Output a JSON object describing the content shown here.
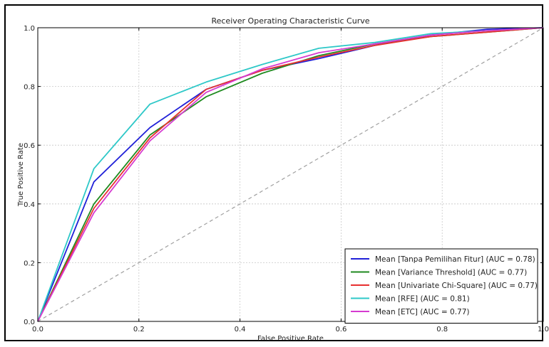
{
  "chart_data": {
    "type": "line",
    "title": "Receiver Operating Characteristic Curve",
    "xlabel": "False Positive Rate",
    "ylabel": "True Positive Rate",
    "xlim": [
      0,
      1
    ],
    "ylim": [
      0,
      1
    ],
    "xticks": [
      "0.0",
      "0.2",
      "0.4",
      "0.6",
      "0.8",
      "1.0"
    ],
    "yticks": [
      "0.0",
      "0.2",
      "0.4",
      "0.6",
      "0.8",
      "1.0"
    ],
    "grid": true,
    "legend_position": "lower-right",
    "series": [
      {
        "name": "Mean [Tanpa Pemilihan Fitur] (AUC = 0.78)",
        "color": "#2020d8",
        "x": [
          0,
          0.111,
          0.222,
          0.333,
          0.444,
          0.556,
          0.667,
          0.778,
          0.889,
          1.0
        ],
        "y": [
          0,
          0.475,
          0.66,
          0.79,
          0.855,
          0.895,
          0.94,
          0.975,
          0.995,
          1.0
        ]
      },
      {
        "name": "Mean [Variance Threshold] (AUC = 0.77)",
        "color": "#1f8a1f",
        "x": [
          0,
          0.111,
          0.222,
          0.333,
          0.444,
          0.556,
          0.667,
          0.778,
          0.889,
          1.0
        ],
        "y": [
          0,
          0.4,
          0.635,
          0.765,
          0.845,
          0.905,
          0.945,
          0.97,
          0.985,
          1.0
        ]
      },
      {
        "name": "Mean [Univariate Chi-Square] (AUC = 0.77)",
        "color": "#e83030",
        "x": [
          0,
          0.111,
          0.222,
          0.333,
          0.444,
          0.556,
          0.667,
          0.778,
          0.889,
          1.0
        ],
        "y": [
          0,
          0.385,
          0.625,
          0.79,
          0.855,
          0.9,
          0.94,
          0.97,
          0.985,
          1.0
        ]
      },
      {
        "name": "Mean [RFE] (AUC = 0.81)",
        "color": "#2ec8c8",
        "x": [
          0,
          0.111,
          0.222,
          0.333,
          0.444,
          0.556,
          0.667,
          0.778,
          0.889,
          1.0
        ],
        "y": [
          0,
          0.52,
          0.74,
          0.815,
          0.875,
          0.93,
          0.95,
          0.98,
          0.99,
          1.0
        ]
      },
      {
        "name": "Mean [ETC] (AUC = 0.77)",
        "color": "#d63bd0",
        "x": [
          0,
          0.111,
          0.222,
          0.333,
          0.444,
          0.556,
          0.667,
          0.778,
          0.889,
          1.0
        ],
        "y": [
          0,
          0.37,
          0.615,
          0.78,
          0.86,
          0.915,
          0.945,
          0.975,
          0.99,
          1.0
        ]
      }
    ],
    "reference_line": {
      "x": [
        0,
        1
      ],
      "y": [
        0,
        1
      ],
      "color": "#a0a0a0",
      "style": "dashed"
    }
  }
}
